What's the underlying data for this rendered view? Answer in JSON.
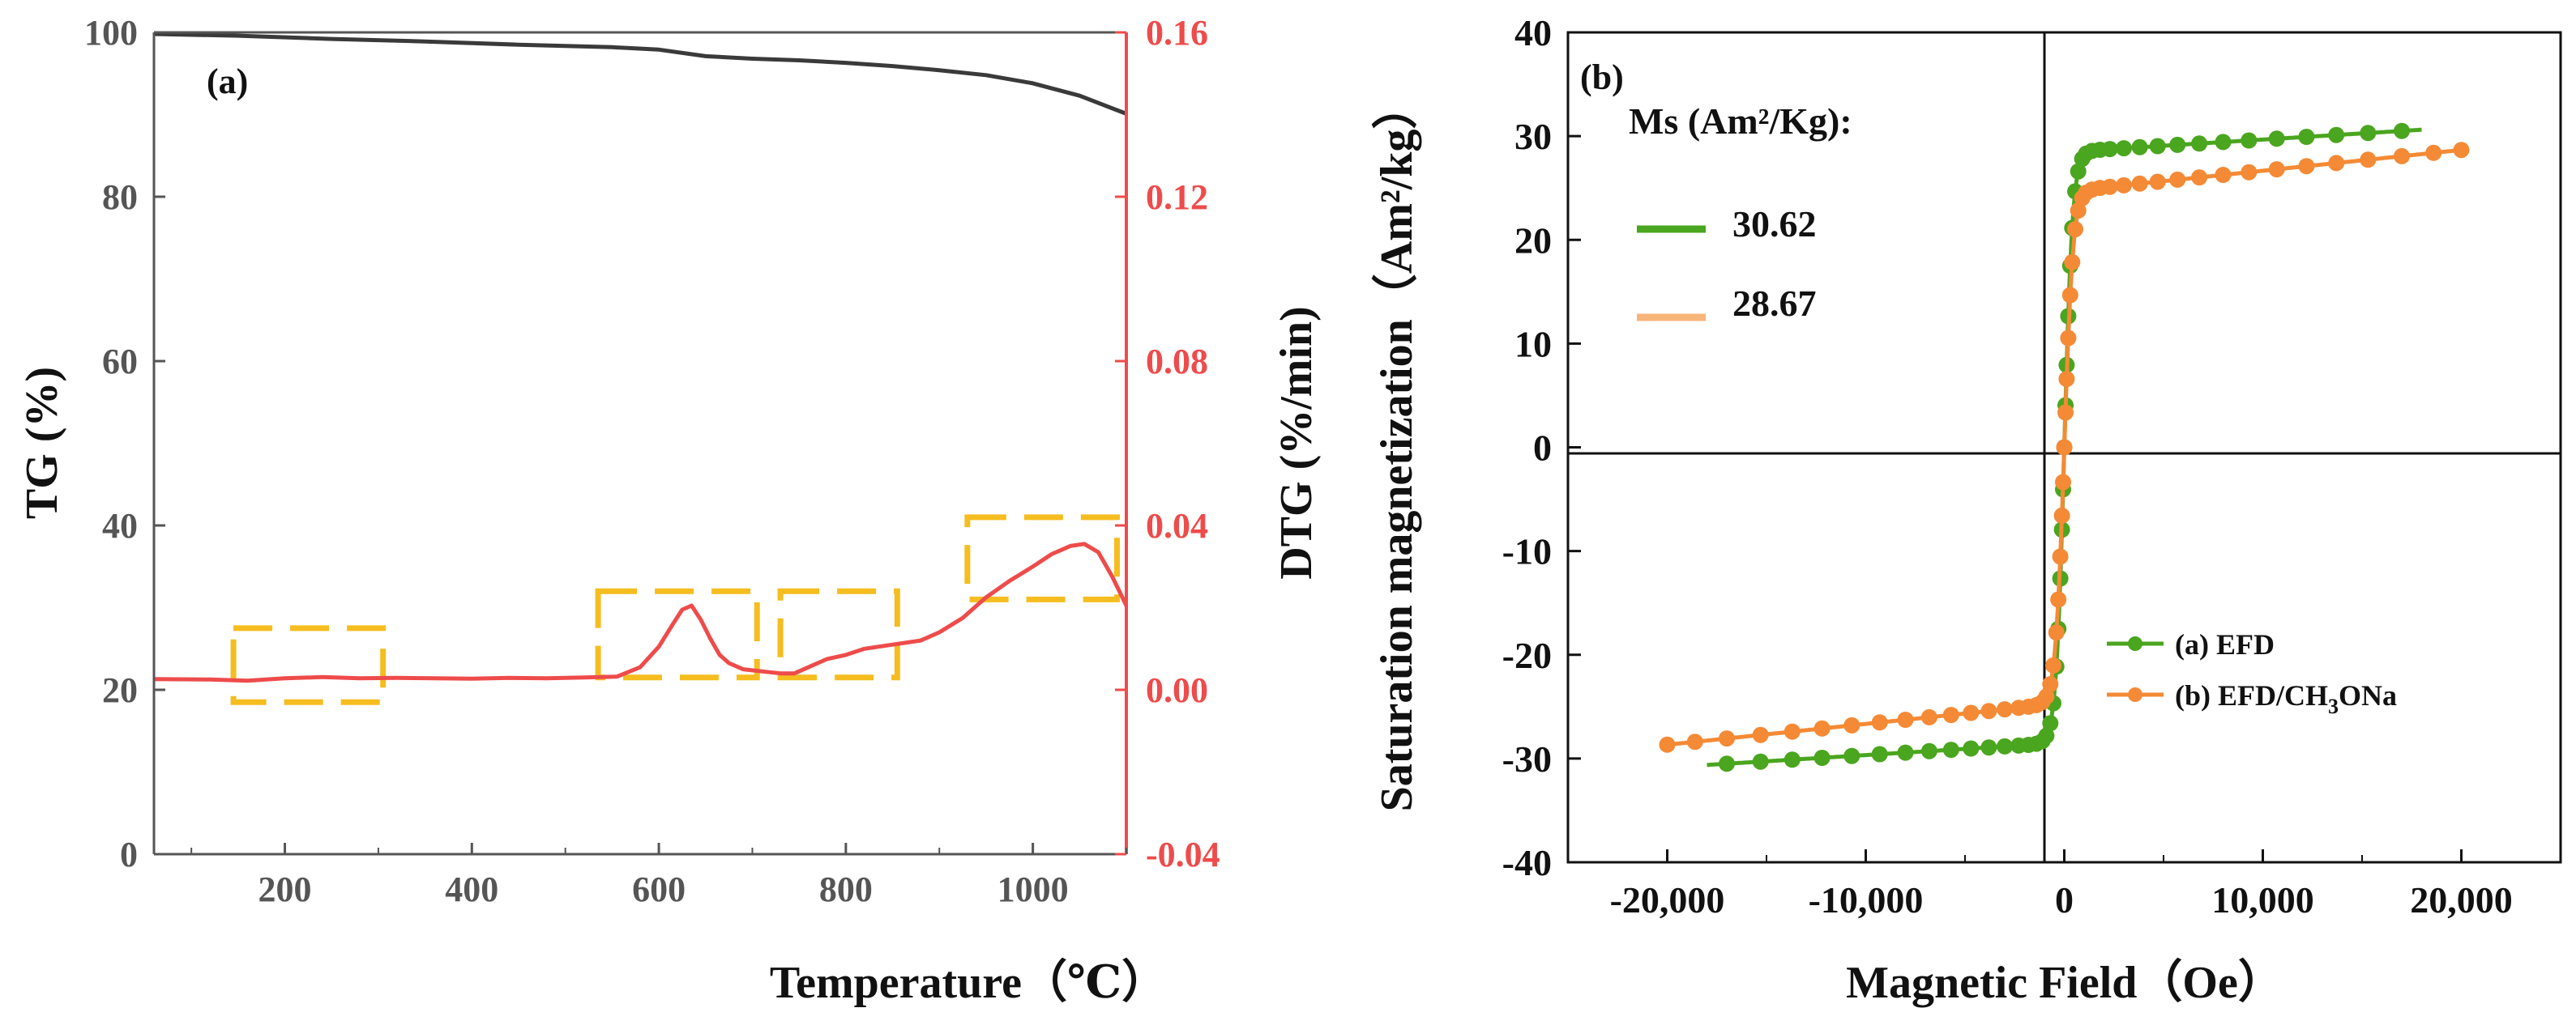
{
  "chart_data": [
    {
      "panel": "(a)",
      "type": "line",
      "xlabel": "Temperature（℃）",
      "ylabel_left": "TG (%)",
      "ylabel_right": "DTG (%/min)",
      "xlim": [
        60,
        1100
      ],
      "ylim_left": [
        0,
        100
      ],
      "ylim_right": [
        -0.04,
        0.16
      ],
      "x_ticks": [
        "200",
        "400",
        "600",
        "800",
        "1000"
      ],
      "y_left_ticks": [
        "0",
        "20",
        "40",
        "60",
        "80",
        "100"
      ],
      "y_right_ticks": [
        "-0.04",
        "0.00",
        "0.04",
        "0.08",
        "0.12",
        "0.16"
      ],
      "colors": {
        "tg": "#3a3a3a",
        "dtg": "#ee4b4b",
        "box": "#f5bd1f"
      },
      "series": [
        {
          "name": "TG",
          "axis": "left",
          "x": [
            60,
            150,
            250,
            350,
            450,
            550,
            600,
            650,
            700,
            750,
            800,
            850,
            900,
            950,
            1000,
            1050,
            1100
          ],
          "y": [
            99.8,
            99.6,
            99.2,
            98.9,
            98.5,
            98.2,
            97.9,
            97.1,
            96.8,
            96.6,
            96.3,
            95.9,
            95.4,
            94.8,
            93.8,
            92.3,
            90.1
          ]
        },
        {
          "name": "DTG",
          "axis": "right",
          "x": [
            60,
            120,
            160,
            200,
            240,
            280,
            320,
            360,
            400,
            440,
            480,
            520,
            555,
            580,
            600,
            615,
            625,
            635,
            645,
            655,
            665,
            675,
            690,
            710,
            730,
            745,
            760,
            780,
            800,
            820,
            850,
            880,
            900,
            925,
            950,
            975,
            1000,
            1020,
            1040,
            1055,
            1070,
            1085,
            1100
          ],
          "y": [
            0.0026,
            0.0025,
            0.0022,
            0.0028,
            0.0031,
            0.0028,
            0.0029,
            0.0028,
            0.0027,
            0.0029,
            0.0028,
            0.003,
            0.0032,
            0.0055,
            0.0105,
            0.016,
            0.0195,
            0.0205,
            0.017,
            0.0125,
            0.0085,
            0.0065,
            0.005,
            0.0045,
            0.004,
            0.004,
            0.0055,
            0.0075,
            0.0085,
            0.01,
            0.011,
            0.012,
            0.014,
            0.0175,
            0.0225,
            0.0265,
            0.03,
            0.033,
            0.035,
            0.0355,
            0.0335,
            0.0275,
            0.0205
          ]
        }
      ],
      "highlight_boxes": [
        {
          "x": [
            145,
            305
          ],
          "y_right": [
            -0.003,
            0.015
          ]
        },
        {
          "x": [
            535,
            705
          ],
          "y_right": [
            0.003,
            0.024
          ]
        },
        {
          "x": [
            730,
            855
          ],
          "y_right": [
            0.003,
            0.024
          ]
        },
        {
          "x": [
            930,
            1090
          ],
          "y_right": [
            0.022,
            0.042
          ]
        }
      ]
    },
    {
      "panel": "(b)",
      "type": "line",
      "xlabel": "Magnetic Field（Oe）",
      "ylabel": "Saturation magnetization（Am²/kg）",
      "xlim": [
        -25000,
        25000
      ],
      "ylim": [
        -40,
        40
      ],
      "x_ticks": [
        "-20,000",
        "-10,000",
        "0",
        "10,000",
        "20,000"
      ],
      "y_ticks": [
        "-40",
        "-30",
        "-20",
        "-10",
        "0",
        "10",
        "20",
        "30",
        "40"
      ],
      "annotation_title": "Ms (Am²/Kg):",
      "ms_values": [
        {
          "label": "30.62",
          "color": "#4aa51f"
        },
        {
          "label": "28.67",
          "color": "#f7b57a"
        }
      ],
      "series": [
        {
          "name": "(a) EFD",
          "legend_main": "(a) EFD",
          "legend_sub": "",
          "legend_tail": "",
          "color": "#4aa51f",
          "ms": 30.62,
          "hmax": 18000,
          "h0": 420,
          "k": 0.93
        },
        {
          "name": "(b) EFD/CH3ONa",
          "legend_main": "(b) EFD/CH",
          "legend_sub": "3",
          "legend_tail": "ONa",
          "color": "#f48a35",
          "ms": 28.67,
          "hmax": 20000,
          "h0": 440,
          "k": 0.86
        }
      ]
    }
  ]
}
